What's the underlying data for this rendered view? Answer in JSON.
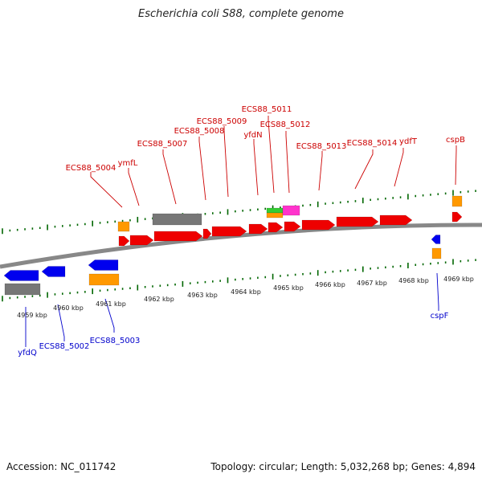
{
  "title": "Escherichia coli S88, complete genome",
  "footer": {
    "accession": "Accession: NC_011742",
    "summary": "Topology: circular; Length: 5,032,268 bp; Genes: 4,894"
  },
  "colors": {
    "backbone": "#888888",
    "forward_gene": "#ee0000",
    "reverse_gene": "#0000ee",
    "orange_feature": "#ff9900",
    "grey_feature": "#777777",
    "green_feature": "#33cc33",
    "magenta_feature": "#ff33cc",
    "tick_marks": "#006600",
    "forward_label": "#cc0000",
    "reverse_label": "#0000cc"
  },
  "scale_labels": [
    "4959 kbp",
    "4960 kbp",
    "4961 kbp",
    "4962 kbp",
    "4963 kbp",
    "4964 kbp",
    "4965 kbp",
    "4966 kbp",
    "4967 kbp",
    "4968 kbp",
    "4969 kbp"
  ],
  "forward_gene_labels": [
    "ECS88_5004",
    "ymfL",
    "ECS88_5007",
    "ECS88_5008",
    "ECS88_5009",
    "yfdN",
    "ECS88_5011",
    "ECS88_5012",
    "ECS88_5013",
    "ECS88_5014",
    "ydfT",
    "cspB"
  ],
  "reverse_gene_labels": [
    "yfdQ",
    "ECS88_5002",
    "ECS88_5003",
    "cspF"
  ]
}
